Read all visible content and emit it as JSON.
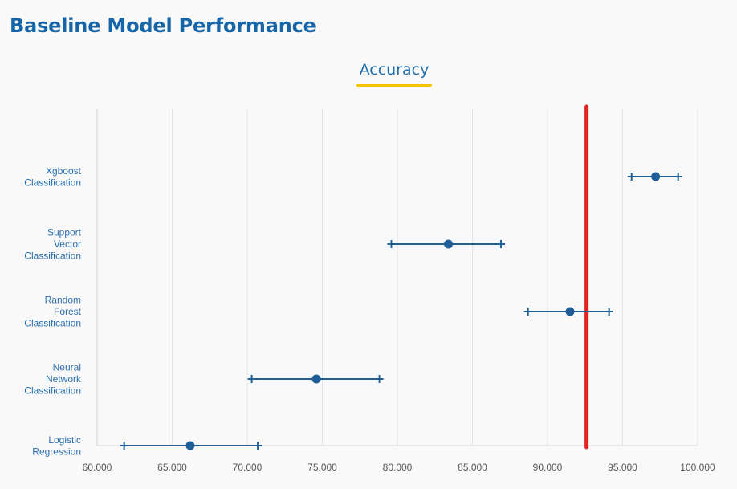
{
  "page": {
    "title": "Baseline Model Performance"
  },
  "tabs": [
    {
      "label": "Accuracy",
      "active": true,
      "underline_color": "#f5c400"
    }
  ],
  "chart_data": {
    "type": "scatter",
    "subtype": "error-bar",
    "title": "",
    "xlabel": "",
    "ylabel": "",
    "xlim": [
      60,
      100
    ],
    "x_ticks": [
      "60.000",
      "65.000",
      "70.000",
      "75.000",
      "80.000",
      "85.000",
      "90.000",
      "95.000",
      "100.000"
    ],
    "grid": "vertical",
    "categories": [
      {
        "lines": [
          "Xgboost",
          "Classification"
        ],
        "value": 97.2,
        "low": 95.6,
        "high": 98.7
      },
      {
        "lines": [
          "Support",
          "Vector",
          "Classification"
        ],
        "value": 83.4,
        "low": 79.6,
        "high": 86.9
      },
      {
        "lines": [
          "Random",
          "Forest",
          "Classification"
        ],
        "value": 91.5,
        "low": 88.7,
        "high": 94.1
      },
      {
        "lines": [
          "Neural",
          "Network",
          "Classification"
        ],
        "value": 74.6,
        "low": 70.3,
        "high": 78.8
      },
      {
        "lines": [
          "Logistic",
          "Regression"
        ],
        "value": 66.2,
        "low": 61.8,
        "high": 70.7
      }
    ],
    "reference_line": {
      "x": 92.6,
      "color": "#e02424"
    },
    "series_color": "#1f5f99"
  }
}
